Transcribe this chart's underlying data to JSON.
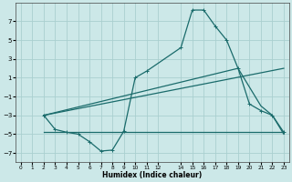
{
  "xlabel": "Humidex (Indice chaleur)",
  "bg_color": "#cce8e8",
  "grid_color": "#aacfcf",
  "line_color": "#1a6b6b",
  "xlim": [
    -0.5,
    23.5
  ],
  "ylim": [
    -8,
    9
  ],
  "yticks": [
    -7,
    -5,
    -3,
    -1,
    1,
    3,
    5,
    7
  ],
  "xtick_positions": [
    0,
    1,
    2,
    3,
    4,
    5,
    6,
    7,
    8,
    9,
    10,
    11,
    12,
    14,
    15,
    16,
    17,
    18,
    19,
    20,
    21,
    22,
    23
  ],
  "xtick_labels": [
    "0",
    "1",
    "2",
    "3",
    "4",
    "5",
    "6",
    "7",
    "8",
    "9",
    "10",
    "11",
    "12",
    "14",
    "15",
    "16",
    "17",
    "18",
    "19",
    "20",
    "21",
    "22",
    "23"
  ],
  "line1_x": [
    2,
    3,
    4,
    5,
    6,
    7,
    8,
    9,
    10,
    11,
    14,
    15,
    16,
    17,
    18,
    19,
    20,
    21,
    22,
    23
  ],
  "line1_y": [
    -3.0,
    -4.5,
    -4.8,
    -5.0,
    -5.8,
    -6.8,
    -6.7,
    -4.7,
    1.0,
    1.7,
    4.2,
    8.2,
    8.2,
    6.5,
    5.0,
    2.0,
    -1.8,
    -2.5,
    -3.0,
    -4.8
  ],
  "line2_x": [
    2,
    23
  ],
  "line2_y": [
    -3.0,
    2.0
  ],
  "line3_x": [
    2,
    19,
    21,
    22,
    23
  ],
  "line3_y": [
    -3.0,
    2.0,
    -2.0,
    -3.0,
    -5.0
  ],
  "line4_x": [
    2,
    23
  ],
  "line4_y": [
    -4.8,
    -4.8
  ]
}
